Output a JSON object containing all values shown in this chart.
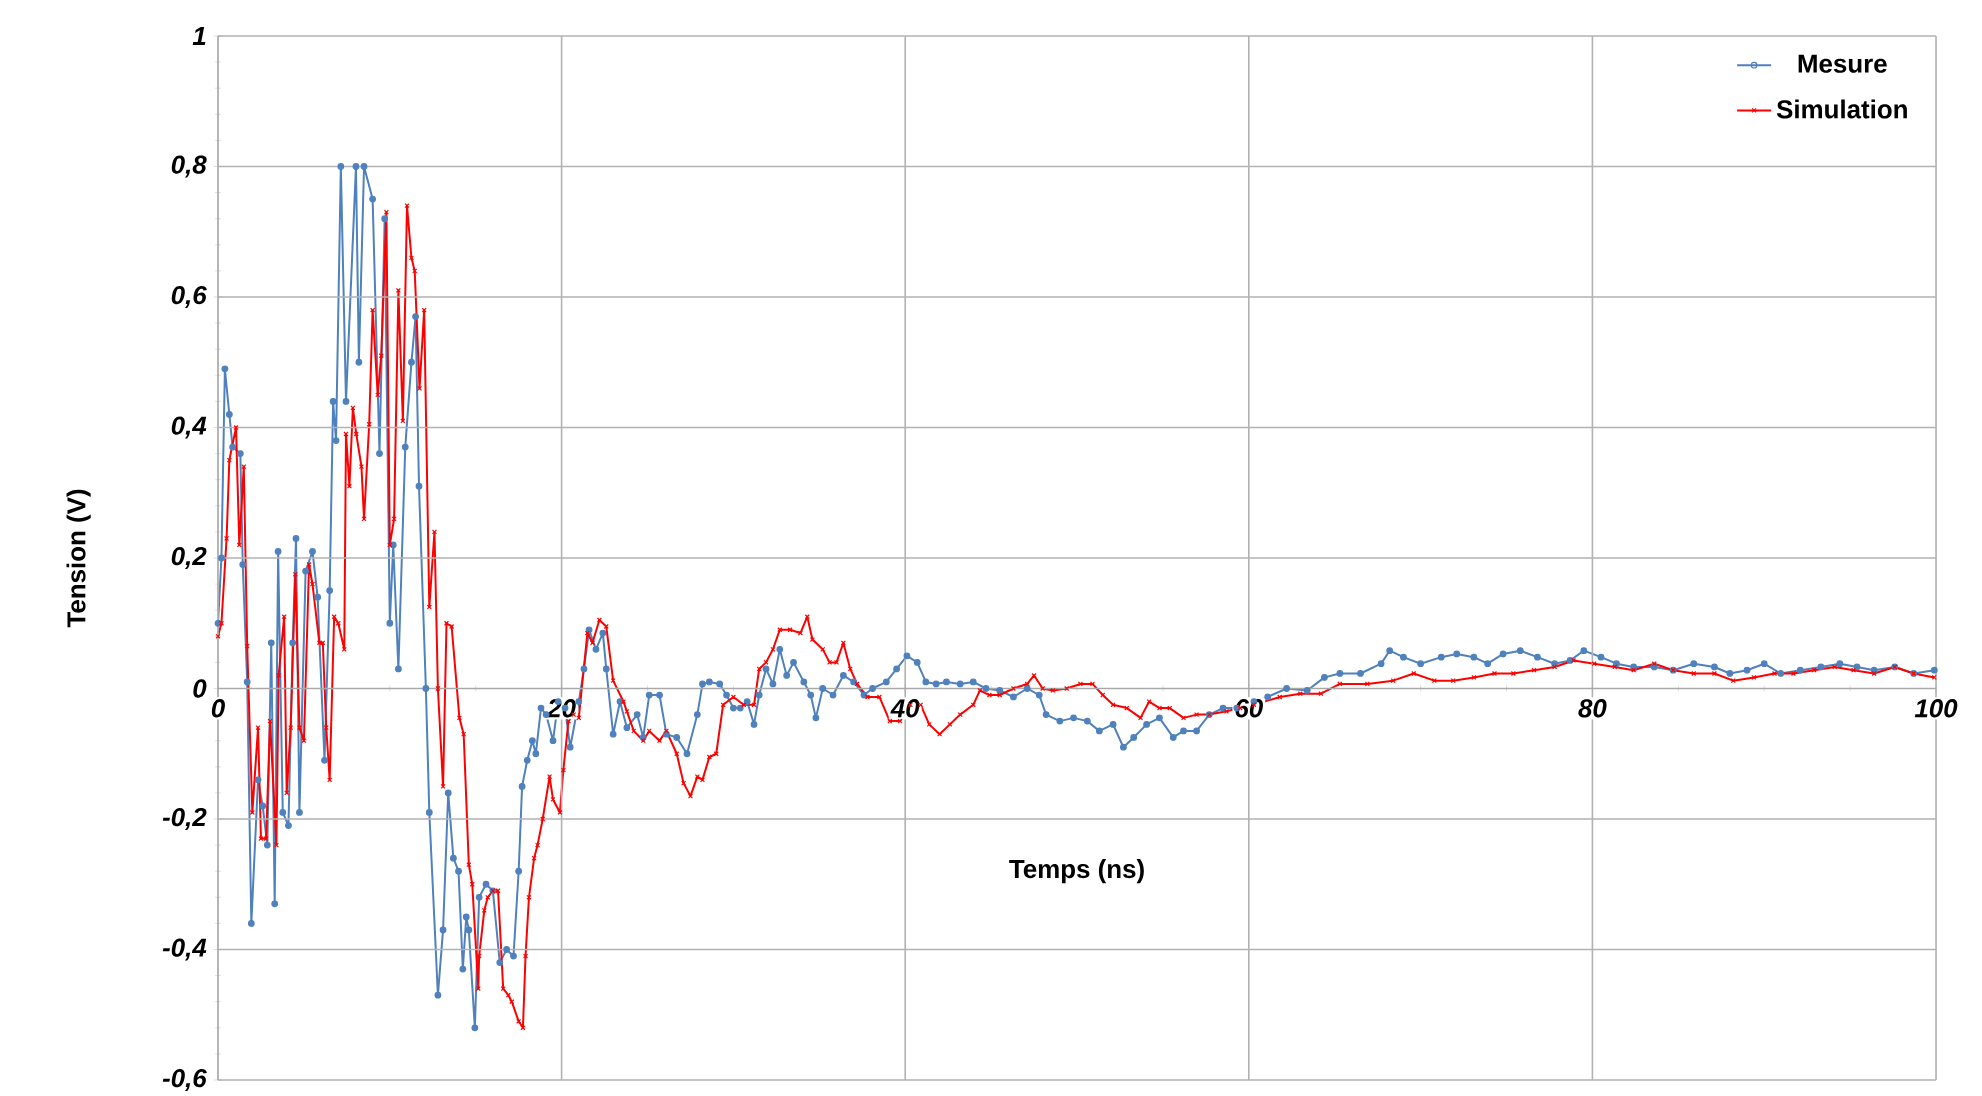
{
  "chart_data": {
    "type": "line",
    "xlabel": "Temps (ns)",
    "ylabel": "Tension (V)",
    "xlim": [
      0,
      100
    ],
    "ylim": [
      -0.6,
      1
    ],
    "xticks": [
      0,
      20,
      40,
      60,
      80,
      100
    ],
    "yticks": [
      {
        "value": -0.6,
        "label": "-0,6"
      },
      {
        "value": -0.4,
        "label": "-0,4"
      },
      {
        "value": -0.2,
        "label": "-0,2"
      },
      0,
      {
        "value": 0.2,
        "label": "0,2"
      },
      {
        "value": 0.4,
        "label": "0,4"
      },
      {
        "value": 0.6,
        "label": "0,6"
      },
      {
        "value": 0.8,
        "label": "0,8"
      },
      1
    ],
    "grid": true,
    "legend": "top right",
    "line_style": "solid",
    "series": [
      {
        "name": "Mesure",
        "color": "#4f81bd",
        "marker": "circle",
        "x": [
          0,
          0.2,
          0.4,
          0.66,
          0.85,
          1.3,
          1.44,
          1.7,
          1.94,
          2.33,
          2.6,
          2.87,
          3.1,
          3.3,
          3.5,
          3.77,
          4.1,
          4.35,
          4.54,
          4.74,
          5.1,
          5.5,
          5.8,
          6.2,
          6.5,
          6.7,
          6.87,
          7.15,
          7.45,
          8.03,
          8.2,
          8.5,
          9.0,
          9.4,
          9.7,
          10.0,
          10.2,
          10.5,
          10.9,
          11.26,
          11.5,
          11.7,
          12.1,
          12.3,
          12.8,
          13.1,
          13.4,
          13.7,
          14.0,
          14.25,
          14.45,
          14.6,
          14.95,
          15.2,
          15.6,
          16.0,
          16.4,
          16.8,
          17.2,
          17.5,
          17.7,
          18.0,
          18.3,
          18.5,
          18.8,
          19.1,
          19.5,
          19.8,
          20.2,
          20.5,
          21.0,
          21.3,
          21.6,
          22.0,
          22.4,
          22.6,
          23.0,
          23.4,
          23.8,
          24.4,
          24.75,
          25.1,
          25.7,
          26.1,
          26.7,
          27.3,
          27.9,
          28.2,
          28.6,
          29.2,
          29.6,
          30.0,
          30.4,
          30.8,
          31.2,
          31.5,
          31.9,
          32.3,
          32.7,
          33.1,
          33.5,
          34.1,
          34.5,
          34.8,
          35.2,
          35.8,
          36.4,
          37.0,
          37.6,
          38.1,
          38.9,
          39.5,
          40.1,
          40.7,
          41.2,
          41.8,
          42.4,
          43.2,
          43.96,
          44.7,
          45.5,
          46.3,
          47.1,
          47.8,
          48.2,
          49.0,
          49.8,
          50.6,
          51.3,
          52.1,
          52.7,
          53.3,
          54.05,
          54.8,
          55.6,
          56.2,
          56.96,
          57.7,
          58.5,
          59.3,
          60.3,
          61.1,
          62.2,
          63.4,
          64.4,
          65.3,
          66.5,
          67.7,
          68.2,
          69.0,
          70.0,
          71.2,
          72.1,
          73.1,
          73.9,
          74.8,
          75.8,
          76.8,
          77.8,
          78.7,
          79.5,
          80.5,
          81.4,
          82.4,
          83.6,
          84.7,
          85.9,
          87.1,
          88.0,
          89.0,
          90.0,
          90.96,
          92.1,
          93.3,
          94.4,
          95.4,
          96.4,
          97.6,
          98.7,
          99.9
        ],
        "values": [
          0.1,
          0.2,
          0.49,
          0.42,
          0.37,
          0.36,
          0.19,
          0.01,
          -0.36,
          -0.14,
          -0.18,
          -0.24,
          0.07,
          -0.33,
          0.21,
          -0.19,
          -0.21,
          0.07,
          0.23,
          -0.19,
          0.18,
          0.21,
          0.14,
          -0.11,
          0.15,
          0.44,
          0.38,
          0.8,
          0.44,
          0.8,
          0.5,
          0.8,
          0.75,
          0.36,
          0.72,
          0.1,
          0.22,
          0.03,
          0.37,
          0.5,
          0.57,
          0.31,
          0.0,
          -0.19,
          -0.47,
          -0.37,
          -0.16,
          -0.26,
          -0.28,
          -0.43,
          -0.35,
          -0.37,
          -0.52,
          -0.32,
          -0.3,
          -0.31,
          -0.42,
          -0.4,
          -0.41,
          -0.28,
          -0.15,
          -0.11,
          -0.08,
          -0.1,
          -0.03,
          -0.04,
          -0.08,
          -0.02,
          -0.03,
          -0.09,
          -0.02,
          0.03,
          0.09,
          0.06,
          0.085,
          0.03,
          -0.07,
          -0.02,
          -0.06,
          -0.04,
          -0.075,
          -0.01,
          -0.01,
          -0.07,
          -0.075,
          -0.1,
          -0.04,
          0.007,
          0.01,
          0.007,
          -0.01,
          -0.03,
          -0.03,
          -0.02,
          -0.055,
          -0.01,
          0.03,
          0.007,
          0.06,
          0.02,
          0.04,
          0.01,
          -0.01,
          -0.045,
          0.0,
          -0.01,
          0.02,
          0.01,
          -0.01,
          0.0,
          0.01,
          0.03,
          0.05,
          0.04,
          0.01,
          0.007,
          0.01,
          0.007,
          0.01,
          0.0,
          -0.003,
          -0.013,
          0.0,
          -0.01,
          -0.04,
          -0.05,
          -0.045,
          -0.05,
          -0.065,
          -0.055,
          -0.09,
          -0.075,
          -0.055,
          -0.045,
          -0.075,
          -0.065,
          -0.065,
          -0.04,
          -0.03,
          -0.03,
          -0.02,
          -0.013,
          0.0,
          -0.003,
          0.017,
          0.023,
          0.023,
          0.038,
          0.058,
          0.048,
          0.038,
          0.048,
          0.053,
          0.048,
          0.038,
          0.053,
          0.058,
          0.048,
          0.038,
          0.043,
          0.058,
          0.048,
          0.038,
          0.033,
          0.033,
          0.028,
          0.038,
          0.033,
          0.023,
          0.028,
          0.038,
          0.023,
          0.028,
          0.033,
          0.038,
          0.033,
          0.028,
          0.033,
          0.023,
          0.028
        ]
      },
      {
        "name": "Simulation",
        "color": "#ff0000",
        "marker": "cross",
        "x": [
          0,
          0.2,
          0.5,
          0.66,
          1.05,
          1.24,
          1.5,
          1.7,
          2.0,
          2.33,
          2.5,
          2.8,
          3.03,
          3.4,
          3.53,
          3.85,
          4.0,
          4.23,
          4.5,
          4.74,
          5.0,
          5.3,
          5.5,
          5.9,
          6.1,
          6.3,
          6.5,
          6.76,
          7.0,
          7.35,
          7.45,
          7.65,
          7.85,
          8.05,
          8.35,
          8.5,
          8.8,
          9.0,
          9.3,
          9.5,
          9.8,
          10.0,
          10.25,
          10.5,
          10.76,
          11.0,
          11.26,
          11.45,
          11.73,
          12.0,
          12.3,
          12.6,
          12.8,
          13.1,
          13.3,
          13.6,
          14.05,
          14.3,
          14.6,
          14.8,
          15.15,
          15.2,
          15.5,
          15.7,
          16.0,
          16.3,
          16.6,
          16.9,
          17.1,
          17.5,
          17.75,
          17.9,
          18.1,
          18.4,
          18.6,
          18.9,
          19.3,
          19.5,
          19.9,
          20.1,
          20.4,
          20.7,
          21.0,
          21.5,
          21.8,
          22.2,
          22.6,
          23.0,
          23.6,
          23.8,
          24.2,
          24.75,
          25.1,
          25.7,
          26.1,
          26.7,
          27.1,
          27.5,
          27.9,
          28.2,
          28.6,
          29.0,
          29.4,
          30.0,
          30.6,
          31.2,
          31.5,
          31.9,
          32.3,
          32.7,
          33.3,
          33.9,
          34.3,
          34.6,
          35.2,
          35.6,
          36.0,
          36.4,
          36.8,
          37.2,
          37.8,
          38.5,
          39.1,
          39.7,
          40.3,
          40.9,
          41.4,
          42.0,
          42.6,
          43.2,
          43.96,
          44.35,
          44.9,
          45.5,
          46.3,
          47.1,
          47.5,
          48.0,
          48.6,
          49.4,
          50.2,
          50.9,
          51.5,
          52.1,
          52.9,
          53.7,
          54.2,
          54.8,
          55.4,
          56.2,
          56.96,
          57.7,
          58.7,
          59.5,
          60.3,
          61.8,
          63.0,
          64.2,
          65.3,
          66.9,
          68.4,
          69.6,
          70.8,
          71.9,
          73.1,
          74.3,
          75.4,
          76.6,
          77.8,
          78.9,
          80.1,
          81.3,
          82.4,
          83.6,
          84.7,
          85.9,
          87.1,
          88.2,
          89.4,
          90.6,
          91.7,
          92.9,
          94.1,
          95.2,
          96.4,
          97.6,
          98.7,
          99.9
        ],
        "values": [
          0.08,
          0.1,
          0.23,
          0.35,
          0.4,
          0.22,
          0.34,
          0.065,
          -0.19,
          -0.06,
          -0.23,
          -0.23,
          -0.05,
          -0.24,
          0.02,
          0.11,
          -0.16,
          -0.06,
          0.175,
          -0.06,
          -0.08,
          0.19,
          0.16,
          0.07,
          0.07,
          -0.06,
          -0.14,
          0.11,
          0.1,
          0.06,
          0.39,
          0.31,
          0.43,
          0.39,
          0.34,
          0.26,
          0.405,
          0.58,
          0.45,
          0.51,
          0.73,
          0.22,
          0.26,
          0.61,
          0.41,
          0.74,
          0.66,
          0.64,
          0.46,
          0.58,
          0.125,
          0.24,
          0.0,
          -0.15,
          0.1,
          0.095,
          -0.045,
          -0.07,
          -0.27,
          -0.3,
          -0.46,
          -0.41,
          -0.34,
          -0.32,
          -0.31,
          -0.31,
          -0.46,
          -0.47,
          -0.48,
          -0.51,
          -0.52,
          -0.41,
          -0.32,
          -0.26,
          -0.24,
          -0.2,
          -0.135,
          -0.17,
          -0.19,
          -0.125,
          -0.05,
          -0.04,
          -0.045,
          0.085,
          0.07,
          0.105,
          0.095,
          0.012,
          -0.02,
          -0.035,
          -0.065,
          -0.08,
          -0.065,
          -0.08,
          -0.065,
          -0.1,
          -0.145,
          -0.165,
          -0.135,
          -0.14,
          -0.105,
          -0.1,
          -0.025,
          -0.013,
          -0.025,
          -0.025,
          0.03,
          0.04,
          0.06,
          0.09,
          0.09,
          0.085,
          0.11,
          0.075,
          0.06,
          0.04,
          0.04,
          0.07,
          0.03,
          0.007,
          -0.013,
          -0.013,
          -0.05,
          -0.05,
          -0.025,
          -0.025,
          -0.055,
          -0.07,
          -0.055,
          -0.04,
          -0.025,
          -0.003,
          -0.01,
          -0.01,
          0.0,
          0.007,
          0.02,
          0.0,
          -0.003,
          0.0,
          0.007,
          0.007,
          -0.01,
          -0.025,
          -0.03,
          -0.045,
          -0.02,
          -0.03,
          -0.03,
          -0.045,
          -0.04,
          -0.04,
          -0.035,
          -0.03,
          -0.025,
          -0.013,
          -0.008,
          -0.008,
          0.007,
          0.007,
          0.012,
          0.023,
          0.012,
          0.012,
          0.017,
          0.023,
          0.023,
          0.028,
          0.033,
          0.043,
          0.038,
          0.033,
          0.028,
          0.038,
          0.028,
          0.023,
          0.023,
          0.012,
          0.017,
          0.023,
          0.023,
          0.028,
          0.033,
          0.028,
          0.023,
          0.033,
          0.023,
          0.017
        ]
      }
    ]
  }
}
